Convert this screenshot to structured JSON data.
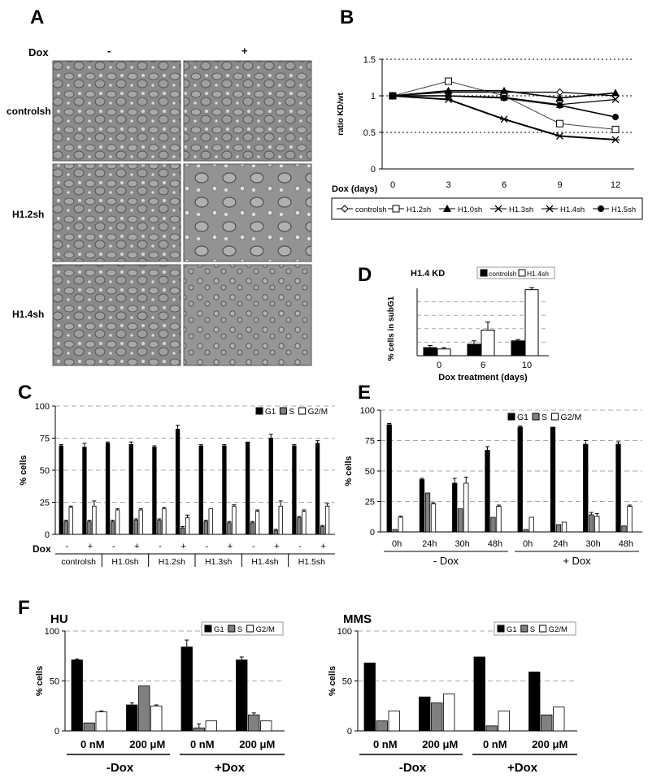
{
  "panel_letters": [
    "A",
    "B",
    "C",
    "D",
    "E",
    "F"
  ],
  "panel_a": {
    "dox_label": "Dox",
    "col_headers": [
      "-",
      "+"
    ],
    "row_labels": [
      "controlsh",
      "H1.2sh",
      "H1.4sh"
    ]
  },
  "chart_data": [
    {
      "id": "B",
      "type": "line",
      "ylabel": "ratio KD/wt",
      "xlabel": "Dox (days)",
      "x": [
        0,
        3,
        6,
        9,
        12
      ],
      "ylim": [
        0,
        1.5
      ],
      "yticks": [
        "0",
        "0.5",
        "1",
        "1.5"
      ],
      "grid": "dotted at 0.5, 1, 1.5",
      "legend_position": "bottom",
      "series": [
        {
          "name": "controlsh",
          "marker": "diamond-open",
          "values": [
            1.0,
            1.05,
            1.05,
            1.05,
            1.0
          ]
        },
        {
          "name": "H1.2sh",
          "marker": "square-open",
          "values": [
            1.0,
            1.2,
            1.0,
            0.62,
            0.54
          ]
        },
        {
          "name": "H1.0sh",
          "marker": "triangle-filled",
          "values": [
            1.0,
            1.07,
            1.07,
            0.97,
            1.04
          ]
        },
        {
          "name": "H1.3sh",
          "marker": "x",
          "values": [
            1.0,
            1.0,
            0.98,
            0.88,
            0.95
          ]
        },
        {
          "name": "H1.4sh",
          "marker": "star",
          "values": [
            1.0,
            0.95,
            0.68,
            0.45,
            0.4
          ]
        },
        {
          "name": "H1.5sh",
          "marker": "circle-filled",
          "values": [
            1.0,
            1.0,
            0.97,
            0.87,
            0.71
          ]
        }
      ]
    },
    {
      "id": "C",
      "type": "bar",
      "ylabel": "% cells",
      "ylim": [
        0,
        100
      ],
      "yticks": [
        "0",
        "25",
        "50",
        "75",
        "100"
      ],
      "dox_label": "Dox",
      "dox_signs": [
        "-",
        "+",
        "-",
        "+",
        "-",
        "+",
        "-",
        "+",
        "-",
        "+",
        "-",
        "+"
      ],
      "groups": [
        "controlsh",
        "H1.0sh",
        "H1.2sh",
        "H1.3sh",
        "H1.4sh",
        "H1.5sh"
      ],
      "legend_position": "top-right",
      "series": [
        {
          "name": "G1",
          "color": "#000000",
          "values": [
            69,
            68,
            71,
            70,
            68,
            82,
            69,
            69,
            72,
            75,
            69,
            71
          ]
        },
        {
          "name": "S",
          "color": "#808080",
          "values": [
            10,
            10,
            10,
            11,
            11,
            5,
            10,
            9,
            9,
            3,
            13,
            6
          ]
        },
        {
          "name": "G2/M",
          "color": "#ffffff",
          "values": [
            21,
            22,
            19,
            19,
            20,
            13,
            20,
            22,
            18,
            22,
            18,
            22
          ]
        }
      ],
      "errors": [
        [
          1,
          3,
          1,
          2,
          1,
          3,
          1,
          1,
          0,
          3,
          1,
          2
        ],
        [
          1,
          1,
          1,
          1,
          1,
          1,
          1,
          1,
          1,
          1,
          1,
          1
        ],
        [
          1,
          4,
          1,
          1,
          1,
          2,
          0,
          1,
          1,
          4,
          1,
          2
        ]
      ]
    },
    {
      "id": "D",
      "type": "bar",
      "title": "H1.4 KD",
      "ylabel": "% cells in subG1",
      "xlabel": "Dox treatment (days)",
      "categories": [
        "0",
        "6",
        "10"
      ],
      "ylim": [
        0,
        10
      ],
      "grid": "dashed",
      "legend_position": "top-right",
      "series": [
        {
          "name": "controlsh",
          "color": "#000000",
          "values": [
            1.2,
            1.7,
            2.2
          ]
        },
        {
          "name": "H1.4sh",
          "color": "#ffffff",
          "values": [
            1.0,
            3.8,
            9.8
          ]
        }
      ],
      "errors": [
        [
          0.3,
          0.5,
          0.2
        ],
        [
          0.2,
          1.2,
          0.3
        ]
      ]
    },
    {
      "id": "E",
      "type": "bar",
      "ylabel": "% cells",
      "ylim": [
        0,
        100
      ],
      "yticks": [
        "0",
        "25",
        "50",
        "75",
        "100"
      ],
      "categories": [
        "0h",
        "24h",
        "30h",
        "48h",
        "0h",
        "24h",
        "30h",
        "48h"
      ],
      "group_labels": [
        "- Dox",
        "+ Dox"
      ],
      "legend_position": "top-right",
      "series": [
        {
          "name": "G1",
          "color": "#000000",
          "values": [
            88,
            43,
            40,
            67,
            86,
            86,
            72,
            72
          ]
        },
        {
          "name": "S",
          "color": "#808080",
          "values": [
            2,
            32,
            19,
            12,
            2,
            6,
            14,
            5
          ]
        },
        {
          "name": "G2/M",
          "color": "#ffffff",
          "values": [
            12,
            23,
            40,
            21,
            12,
            8,
            13,
            21
          ]
        }
      ],
      "errors": [
        [
          1,
          1,
          4,
          3,
          1,
          0,
          3,
          2
        ],
        [
          0,
          0,
          0,
          0,
          0,
          0,
          2,
          0
        ],
        [
          1,
          1,
          5,
          1,
          0,
          0,
          2,
          1
        ]
      ]
    },
    {
      "id": "F-HU",
      "type": "bar",
      "title": "HU",
      "ylabel": "% cells",
      "ylim": [
        0,
        100
      ],
      "yticks": [
        "0",
        "50",
        "100"
      ],
      "categories": [
        "0 nM",
        "200 μM",
        "0 nM",
        "200 μM"
      ],
      "group_labels": [
        "-Dox",
        "+Dox"
      ],
      "legend_position": "top-right",
      "series": [
        {
          "name": "G1",
          "color": "#000000",
          "values": [
            71,
            26,
            84,
            71
          ]
        },
        {
          "name": "S",
          "color": "#808080",
          "values": [
            8,
            45,
            3,
            16
          ]
        },
        {
          "name": "G2/M",
          "color": "#ffffff",
          "values": [
            19,
            25,
            10,
            10
          ]
        }
      ],
      "errors": [
        [
          1,
          2,
          7,
          3
        ],
        [
          0,
          0,
          4,
          2
        ],
        [
          1,
          1,
          0,
          0
        ]
      ]
    },
    {
      "id": "F-MMS",
      "type": "bar",
      "title": "MMS",
      "ylabel": "% cells",
      "ylim": [
        0,
        100
      ],
      "yticks": [
        "0",
        "50",
        "100"
      ],
      "categories": [
        "0 nM",
        "200 μM",
        "0 nM",
        "200 μM"
      ],
      "group_labels": [
        "-Dox",
        "+Dox"
      ],
      "legend_position": "top-right",
      "series": [
        {
          "name": "G1",
          "color": "#000000",
          "values": [
            68,
            34,
            74,
            59
          ]
        },
        {
          "name": "S",
          "color": "#808080",
          "values": [
            10,
            28,
            5,
            16
          ]
        },
        {
          "name": "G2/M",
          "color": "#ffffff",
          "values": [
            20,
            37,
            20,
            24
          ]
        }
      ]
    }
  ]
}
